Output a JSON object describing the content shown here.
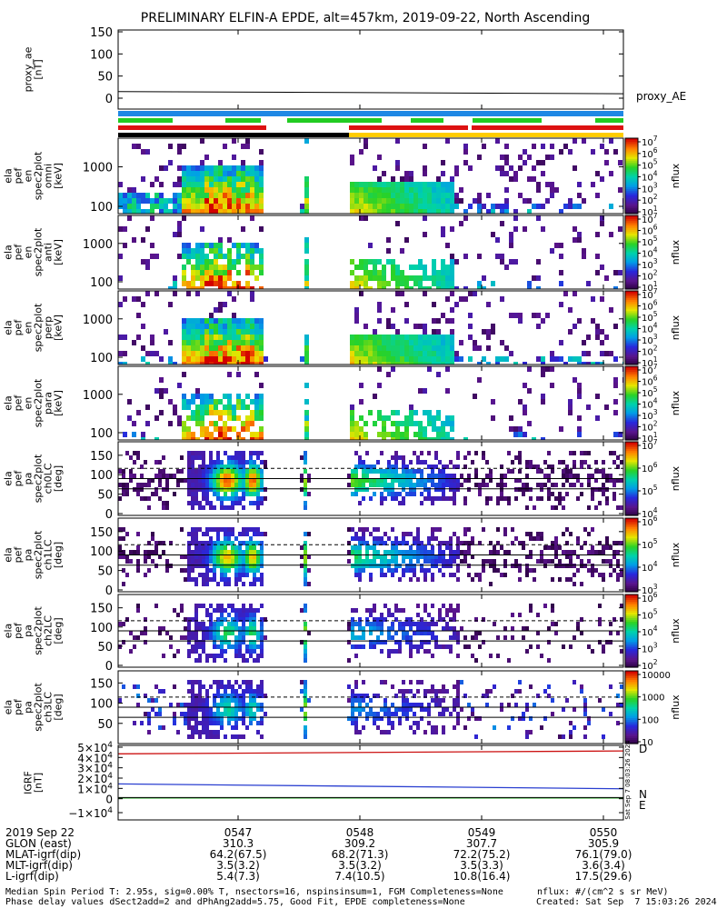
{
  "title": "PRELIMINARY ELFIN-A EPDE, alt=457km, 2019-09-22, North Ascending",
  "colors": {
    "blue_bar": "#1e88e5",
    "green_bar": "#22cc22",
    "red_bar": "#dd1111",
    "black_bar": "#000000",
    "yellow_bar": "#ffcc00",
    "N": "#2a3fd0",
    "E": "#22aa22",
    "D": "#cc1111"
  },
  "panels": [
    {
      "ylabel": [
        "proxy_ae",
        "[nT]"
      ],
      "ticks": [
        "150",
        "100",
        "50",
        "0"
      ],
      "side_label": "proxy_AE"
    },
    {
      "ylabel": [
        "ela",
        "pef",
        "en",
        "spec2plot",
        "omni",
        "[keV]"
      ],
      "ticks": [
        "1000",
        "100"
      ],
      "cbar_ticks": [
        "10^7",
        "10^6",
        "10^5",
        "10^4",
        "10^3",
        "10^2",
        "10^1"
      ],
      "cbar_label": "nflux"
    },
    {
      "ylabel": [
        "ela",
        "pef",
        "en",
        "spec2plot",
        "anti",
        "[keV]"
      ],
      "ticks": [
        "1000",
        "100"
      ],
      "cbar_ticks": [
        "10^7",
        "10^6",
        "10^5",
        "10^4",
        "10^3",
        "10^2",
        "10^1"
      ],
      "cbar_label": "nflux"
    },
    {
      "ylabel": [
        "ela",
        "pef",
        "en",
        "spec2plot",
        "perp",
        "[keV]"
      ],
      "ticks": [
        "1000",
        "100"
      ],
      "cbar_ticks": [
        "10^7",
        "10^6",
        "10^5",
        "10^4",
        "10^3",
        "10^2",
        "10^1"
      ],
      "cbar_label": "nflux"
    },
    {
      "ylabel": [
        "ela",
        "pef",
        "en",
        "spec2plot",
        "para",
        "[keV]"
      ],
      "ticks": [
        "1000",
        "100"
      ],
      "cbar_ticks": [
        "10^7",
        "10^6",
        "10^5",
        "10^4",
        "10^3",
        "10^2",
        "10^1"
      ],
      "cbar_label": "nflux"
    },
    {
      "ylabel": [
        "ela",
        "pef",
        "pa",
        "spec2plot",
        "ch0LC",
        "[deg]"
      ],
      "ticks": [
        "150",
        "100",
        "50",
        "0"
      ],
      "cbar_ticks": [
        "10^7",
        "10^6",
        "10^5",
        "10^4"
      ],
      "cbar_label": "nflux"
    },
    {
      "ylabel": [
        "ela",
        "pef",
        "pa",
        "spec2plot",
        "ch1LC",
        "[deg]"
      ],
      "ticks": [
        "150",
        "100",
        "50",
        "0"
      ],
      "cbar_ticks": [
        "10^6",
        "10^5",
        "10^4",
        "10^3"
      ],
      "cbar_label": "nflux"
    },
    {
      "ylabel": [
        "ela",
        "pef",
        "pa",
        "spec2plot",
        "ch2LC",
        "[deg]"
      ],
      "ticks": [
        "150",
        "100",
        "50",
        "0"
      ],
      "cbar_ticks": [
        "10^6",
        "10^5",
        "10^4",
        "10^3",
        "10^2"
      ],
      "cbar_label": "nflux"
    },
    {
      "ylabel": [
        "ela",
        "pef",
        "pa",
        "spec2plot",
        "ch3LC",
        "[deg]"
      ],
      "ticks": [
        "150",
        "100",
        "50"
      ],
      "cbar_ticks": [
        "10000",
        "1000",
        "100",
        "10"
      ],
      "cbar_label": "nflux"
    },
    {
      "ylabel": [
        "IGRF",
        "[nT]"
      ],
      "ticks": [
        "5×10^4",
        "4×10^4",
        "3×10^4",
        "2×10^4",
        "1×10^4",
        "0",
        "−1×10^4"
      ],
      "legend": [
        "D",
        "N",
        "E"
      ],
      "vertical_stamp": "Sat Sep 7 08:03:26 2024"
    }
  ],
  "footer_rows": [
    {
      "label": "2019 Sep 22",
      "values": [
        "0547",
        "0548",
        "0549",
        "0550"
      ]
    },
    {
      "label": "GLON (east)",
      "values": [
        "310.3",
        "309.2",
        "307.7",
        "305.9"
      ]
    },
    {
      "label": "MLAT-igrf(dip)",
      "values": [
        "64.2(67.5)",
        "68.2(71.3)",
        "72.2(75.2)",
        "76.1(79.0)"
      ]
    },
    {
      "label": "MLT-igrf(dip)",
      "values": [
        "3.5(3.2)",
        "3.5(3.2)",
        "3.5(3.3)",
        "3.6(3.4)"
      ]
    },
    {
      "label": "L-igrf(dip)",
      "values": [
        "5.4(7.3)",
        "7.4(10.5)",
        "10.8(16.4)",
        "17.5(29.6)"
      ]
    }
  ],
  "notes": {
    "line1": "Median Spin Period T: 2.95s, sig=0.00% T, nsectors=16, nspinsinsum=1, FGM Completeness=None",
    "line2": "Phase delay values dSect2add=2 and dPhAng2add=5.75, Good Fit, EPDE completeness=None",
    "units": "nflux: #/(cm^2 s sr MeV)",
    "created": "Created: Sat Sep  7 15:03:26 2024"
  },
  "chart_data": {
    "type": "heatmap",
    "title": "PRELIMINARY ELFIN-A EPDE, alt=457km, 2019-09-22, North Ascending",
    "x_ticks": [
      "0547",
      "0548",
      "0549",
      "0550"
    ],
    "proxy_ae": {
      "values_nT_start_end": [
        15,
        10
      ],
      "ylim": [
        0,
        150
      ]
    },
    "igrf": {
      "series": [
        {
          "name": "D",
          "values_approx": [
            45000,
            48000
          ]
        },
        {
          "name": "N",
          "values_approx": [
            14000,
            9000
          ]
        },
        {
          "name": "E",
          "values_approx": [
            -500,
            -500
          ]
        }
      ],
      "ylim": [
        -10000,
        50000
      ]
    },
    "spectrogram_energy_range_keV": [
      60,
      6000
    ],
    "pitch_angle_range_deg": [
      0,
      180
    ],
    "colorscale": "rainbow"
  }
}
